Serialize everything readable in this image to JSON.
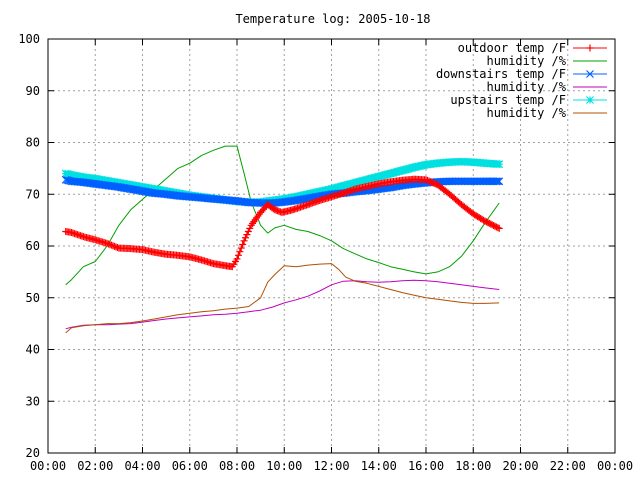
{
  "chart_data": {
    "type": "line",
    "title": "Temperature log: 2005-10-18",
    "xlabel": "",
    "ylabel": "",
    "xlim": [
      0,
      24
    ],
    "ylim": [
      20,
      100
    ],
    "grid": true,
    "legend_position": "top-right",
    "x_tick_labels": [
      "00:00",
      "02:00",
      "04:00",
      "06:00",
      "08:00",
      "10:00",
      "12:00",
      "14:00",
      "16:00",
      "18:00",
      "20:00",
      "22:00",
      "00:00"
    ],
    "y_tick_labels": [
      "20",
      "30",
      "40",
      "50",
      "60",
      "70",
      "80",
      "90",
      "100"
    ],
    "series": [
      {
        "name": "outdoor temp /F",
        "color": "#ff0000",
        "marker": "plus",
        "x": [
          0.75,
          1.0,
          1.5,
          2.0,
          2.5,
          3.0,
          3.5,
          4.0,
          4.5,
          5.0,
          5.5,
          6.0,
          6.5,
          7.0,
          7.5,
          7.8,
          8.0,
          8.3,
          8.6,
          9.0,
          9.3,
          9.6,
          9.9,
          10.2,
          10.5,
          11.0,
          11.5,
          12.0,
          12.5,
          13.0,
          13.5,
          14.0,
          14.5,
          15.0,
          15.5,
          16.0,
          16.5,
          17.0,
          17.5,
          18.0,
          18.5,
          19.1
        ],
        "y": [
          62.8,
          62.6,
          61.8,
          61.2,
          60.5,
          59.6,
          59.5,
          59.3,
          58.8,
          58.4,
          58.2,
          57.9,
          57.3,
          56.6,
          56.2,
          56.0,
          57.5,
          61.0,
          64.0,
          66.5,
          68.0,
          67.0,
          66.5,
          66.8,
          67.2,
          68.0,
          68.8,
          69.5,
          70.2,
          71.0,
          71.5,
          72.0,
          72.4,
          72.7,
          72.9,
          72.8,
          71.8,
          70.0,
          68.0,
          66.2,
          64.8,
          63.4
        ]
      },
      {
        "name": "humidity /%",
        "color": "#00a000",
        "marker": "none",
        "x": [
          0.75,
          1.0,
          1.5,
          2.0,
          2.5,
          3.0,
          3.5,
          4.0,
          4.5,
          5.0,
          5.5,
          6.0,
          6.5,
          7.0,
          7.5,
          8.0,
          8.3,
          8.6,
          9.0,
          9.3,
          9.6,
          10.0,
          10.5,
          11.0,
          11.5,
          12.0,
          12.5,
          13.0,
          13.5,
          14.0,
          14.5,
          15.0,
          15.5,
          16.0,
          16.5,
          17.0,
          17.5,
          18.0,
          18.5,
          19.1
        ],
        "y": [
          52.5,
          53.5,
          56.0,
          57.0,
          60.0,
          64.0,
          67.0,
          69.0,
          71.0,
          73.0,
          75.0,
          76.0,
          77.5,
          78.5,
          79.3,
          79.3,
          74.0,
          68.5,
          64.0,
          62.5,
          63.5,
          64.0,
          63.2,
          62.8,
          62.0,
          61.0,
          59.5,
          58.5,
          57.5,
          56.8,
          56.0,
          55.5,
          55.0,
          54.6,
          55.0,
          56.0,
          58.0,
          61.0,
          64.5,
          68.3
        ]
      },
      {
        "name": "downstairs temp /F",
        "color": "#0060ff",
        "marker": "cross",
        "x": [
          0.75,
          1.0,
          1.5,
          2.0,
          2.5,
          3.0,
          3.5,
          4.0,
          4.5,
          5.0,
          5.5,
          6.0,
          6.5,
          7.0,
          7.5,
          8.0,
          8.5,
          9.0,
          9.5,
          10.0,
          10.5,
          11.0,
          11.5,
          12.0,
          12.5,
          13.0,
          13.5,
          14.0,
          14.5,
          15.0,
          15.5,
          16.0,
          16.5,
          17.0,
          17.5,
          18.0,
          18.5,
          19.1
        ],
        "y": [
          72.8,
          72.5,
          72.3,
          72.0,
          71.7,
          71.4,
          71.0,
          70.6,
          70.2,
          70.0,
          69.7,
          69.5,
          69.3,
          69.1,
          68.9,
          68.7,
          68.4,
          68.3,
          68.3,
          68.5,
          68.8,
          69.2,
          69.6,
          70.0,
          70.2,
          70.5,
          70.7,
          71.0,
          71.3,
          71.7,
          72.0,
          72.2,
          72.4,
          72.5,
          72.5,
          72.5,
          72.5,
          72.5
        ]
      },
      {
        "name": "humidity /%",
        "color": "#c000c0",
        "marker": "none",
        "x": [
          0.75,
          1.0,
          1.5,
          2.0,
          2.5,
          3.0,
          3.5,
          4.0,
          4.5,
          5.0,
          5.5,
          6.0,
          6.5,
          7.0,
          7.5,
          8.0,
          8.5,
          9.0,
          9.5,
          10.0,
          10.5,
          11.0,
          11.5,
          12.0,
          12.5,
          13.0,
          13.5,
          14.0,
          14.5,
          15.0,
          15.5,
          16.0,
          16.5,
          17.0,
          17.5,
          18.0,
          18.5,
          19.1
        ],
        "y": [
          44.0,
          44.3,
          44.7,
          44.8,
          44.8,
          44.9,
          45.0,
          45.3,
          45.6,
          45.9,
          46.1,
          46.3,
          46.5,
          46.7,
          46.8,
          47.0,
          47.3,
          47.6,
          48.2,
          49.0,
          49.6,
          50.3,
          51.3,
          52.5,
          53.2,
          53.3,
          53.1,
          53.0,
          53.1,
          53.3,
          53.4,
          53.3,
          53.1,
          52.8,
          52.5,
          52.2,
          51.9,
          51.6
        ]
      },
      {
        "name": "upstairs temp /F",
        "color": "#00e0e0",
        "marker": "star",
        "x": [
          0.75,
          1.0,
          1.5,
          2.0,
          2.5,
          3.0,
          3.5,
          4.0,
          4.5,
          5.0,
          5.5,
          6.0,
          6.5,
          7.0,
          7.5,
          8.0,
          8.5,
          9.0,
          9.5,
          10.0,
          10.5,
          11.0,
          11.5,
          12.0,
          12.5,
          13.0,
          13.5,
          14.0,
          14.5,
          15.0,
          15.5,
          16.0,
          16.5,
          17.0,
          17.5,
          18.0,
          18.5,
          19.1
        ],
        "y": [
          74.0,
          73.7,
          73.3,
          73.0,
          72.6,
          72.2,
          71.8,
          71.4,
          71.0,
          70.6,
          70.2,
          69.8,
          69.5,
          69.2,
          68.9,
          68.6,
          68.5,
          68.5,
          68.8,
          69.1,
          69.5,
          70.0,
          70.5,
          71.0,
          71.6,
          72.2,
          72.8,
          73.4,
          74.0,
          74.6,
          75.2,
          75.7,
          76.0,
          76.2,
          76.3,
          76.2,
          76.0,
          75.8
        ]
      },
      {
        "name": "humidity /%",
        "color": "#b05000",
        "marker": "none",
        "x": [
          0.75,
          1.0,
          1.5,
          2.0,
          2.5,
          3.0,
          3.5,
          4.0,
          4.5,
          5.0,
          5.5,
          6.0,
          6.5,
          7.0,
          7.5,
          8.0,
          8.5,
          9.0,
          9.3,
          9.6,
          10.0,
          10.5,
          11.0,
          11.5,
          12.0,
          12.3,
          12.6,
          13.0,
          13.5,
          14.0,
          14.5,
          15.0,
          15.5,
          16.0,
          16.5,
          17.0,
          17.5,
          18.0,
          18.5,
          19.1
        ],
        "y": [
          43.2,
          44.2,
          44.6,
          44.8,
          45.0,
          45.0,
          45.2,
          45.5,
          45.9,
          46.3,
          46.7,
          47.0,
          47.3,
          47.5,
          47.8,
          48.0,
          48.3,
          50.0,
          53.0,
          54.5,
          56.2,
          56.0,
          56.3,
          56.5,
          56.6,
          55.5,
          54.0,
          53.2,
          52.8,
          52.2,
          51.6,
          51.0,
          50.5,
          50.0,
          49.7,
          49.4,
          49.1,
          48.9,
          48.9,
          49.0
        ]
      }
    ]
  }
}
